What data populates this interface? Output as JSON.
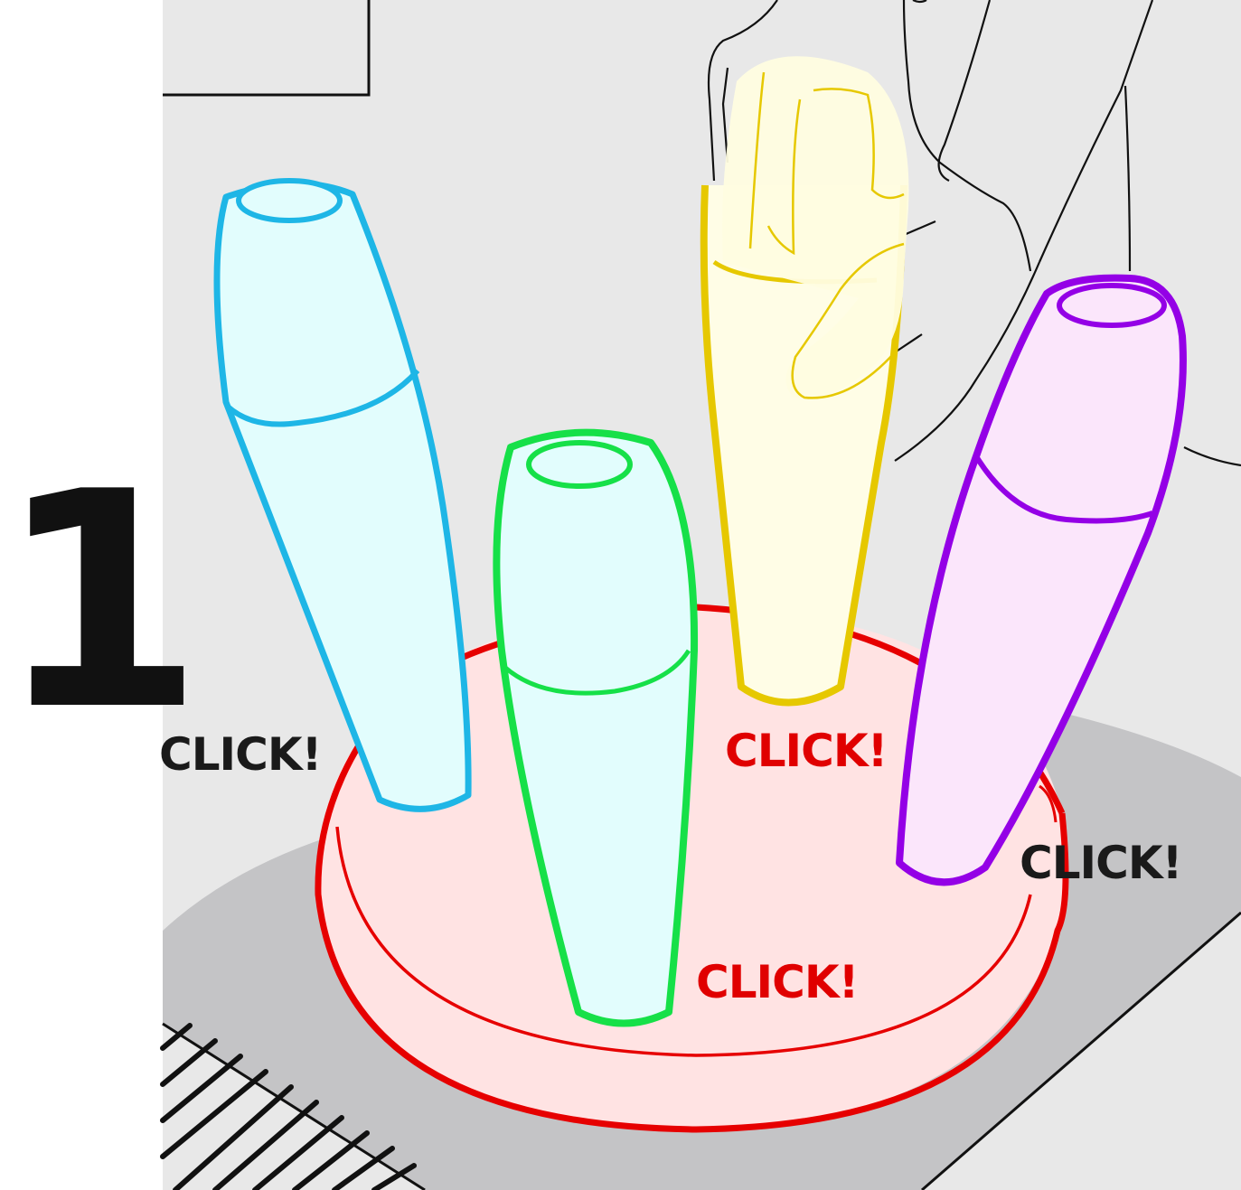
{
  "step": {
    "number": "1"
  },
  "labels": {
    "click_left": "CLICK!",
    "click_center_top": "CLICK!",
    "click_center_bottom": "CLICK!",
    "click_right": "CLICK!"
  },
  "colors": {
    "background_panel": "#e8e8e8",
    "table": "#c4c4c6",
    "base_ring": "#e60000",
    "base_fill": "#ffe3e3",
    "pin_blue": "#1eb6e6",
    "pin_green": "#16e048",
    "pin_yellow": "#e6c800",
    "pin_purple": "#9400e6",
    "pin_blue_fill": "#e2fdfd",
    "pin_yellow_fill": "#fffde6",
    "pin_purple_fill": "#fbe6fb",
    "click_red": "#e00000",
    "click_dark": "#1a1a1a"
  },
  "icons": {
    "pins": [
      "cyan-pin-icon",
      "green-pin-icon",
      "yellow-pin-icon",
      "purple-pin-icon"
    ],
    "base": "round-base-icon",
    "hand": "hand-icon"
  }
}
